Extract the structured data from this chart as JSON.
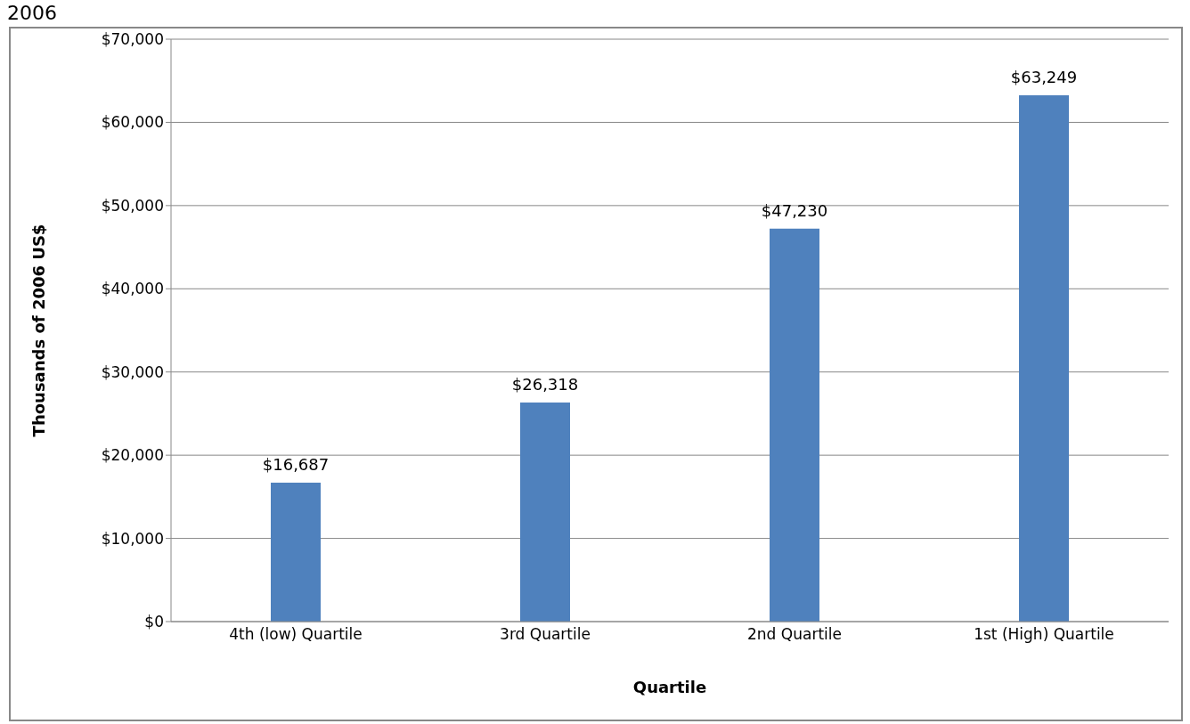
{
  "chart_data": {
    "type": "bar",
    "title": "2006",
    "xlabel": "Quartile",
    "ylabel": "Thousands of 2006 US$",
    "categories": [
      "4th (low) Quartile",
      "3rd Quartile",
      "2nd Quartile",
      "1st (High) Quartile"
    ],
    "values": [
      16687,
      26318,
      47230,
      63249
    ],
    "color": "#4f81bd",
    "value_labels": [
      "$16,687",
      "$26,318",
      "$47,230",
      "$63,249"
    ],
    "ylim": [
      0,
      70000
    ],
    "yticks": [
      {
        "value": 0,
        "label": "$0"
      },
      {
        "value": 10000,
        "label": "$10,000"
      },
      {
        "value": 20000,
        "label": "$20,000"
      },
      {
        "value": 30000,
        "label": "$30,000"
      },
      {
        "value": 40000,
        "label": "$40,000"
      },
      {
        "value": 50000,
        "label": "$50,000"
      },
      {
        "value": 60000,
        "label": "$60,000"
      },
      {
        "value": 70000,
        "label": "$70,000"
      }
    ],
    "grid": "y",
    "legend": false
  }
}
